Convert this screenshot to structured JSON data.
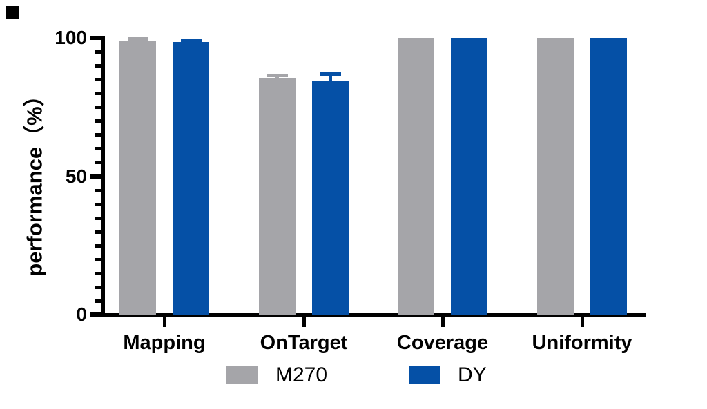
{
  "figure": {
    "background": "#ffffff"
  },
  "y_axis": {
    "label": "performance（%）",
    "tick_labels": [
      "0",
      "50",
      "100"
    ],
    "major_ticks": [
      0,
      50,
      100
    ],
    "minor_tick_step": 5,
    "range": [
      0,
      100
    ]
  },
  "x_axis": {
    "categories": [
      "Mapping",
      "OnTarget",
      "Coverage",
      "Uniformity"
    ]
  },
  "legend": {
    "items": [
      {
        "label": "M270",
        "color": "#a5a5a9"
      },
      {
        "label": "DY",
        "color": "#0550a6"
      }
    ]
  },
  "chart_data": {
    "type": "bar",
    "title": "",
    "xlabel": "",
    "ylabel": "performance（%）",
    "ylim": [
      0,
      100
    ],
    "grid": false,
    "legend_position": "bottom",
    "categories": [
      "Mapping",
      "OnTarget",
      "Coverage",
      "Uniformity"
    ],
    "series": [
      {
        "name": "M270",
        "color": "#a5a5a9",
        "values": [
          99.1,
          85.6,
          100,
          100
        ],
        "errors": [
          0.7,
          0.9,
          0,
          0
        ]
      },
      {
        "name": "DY",
        "color": "#0550a6",
        "values": [
          98.6,
          84.4,
          100,
          100
        ],
        "errors": [
          0.6,
          2.7,
          0,
          0
        ]
      }
    ]
  }
}
